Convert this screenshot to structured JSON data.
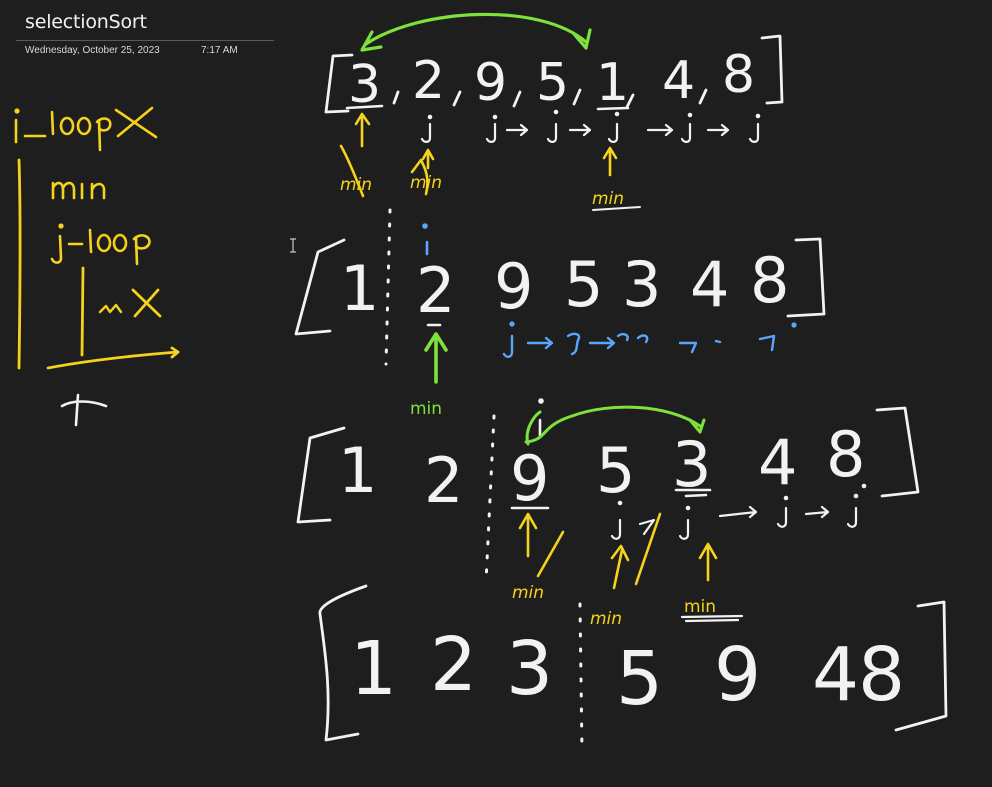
{
  "page": {
    "title": "selectionSort",
    "date": "Wednesday, October 25, 2023",
    "time": "7:17 AM"
  },
  "icons": {
    "cursor": "text-cursor-icon"
  },
  "colors": {
    "background": "#1e1e1e",
    "ink_white": "#f2f2f2",
    "ink_yellow": "#f5d21c",
    "ink_green": "#7ee13c",
    "ink_blue": "#5aa6ff"
  },
  "notes": {
    "i_loop": "i-loop",
    "min": "min",
    "j_loop": "j-loop"
  },
  "arrays": [
    {
      "digits": [
        "3",
        "2",
        "9",
        "5",
        "1",
        "4",
        "8"
      ]
    },
    {
      "digits": [
        "1",
        "2",
        "9",
        "5",
        "3",
        "4",
        "8"
      ]
    },
    {
      "digits": [
        "1",
        "2",
        "9",
        "5",
        "3",
        "4",
        "8"
      ]
    },
    {
      "digits": [
        "1",
        "2",
        "3",
        "5",
        "9",
        "4",
        "8"
      ]
    }
  ],
  "labels": {
    "min": "min",
    "i": "i",
    "j": "j"
  }
}
